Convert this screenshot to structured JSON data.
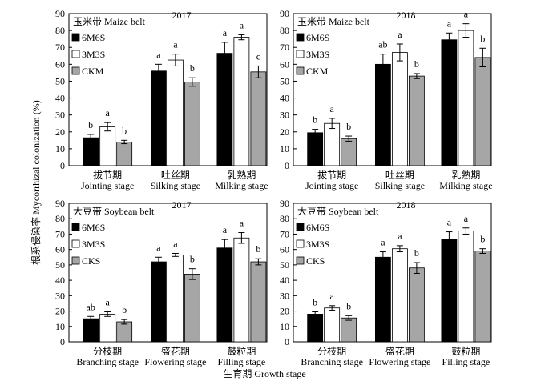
{
  "figure": {
    "ylabel": "根系侵染率 Mycorrhizal colonization (%)",
    "xlabel": "生育期 Growth stage"
  },
  "chart_data": [
    {
      "type": "bar",
      "belt": "玉米带 Maize belt",
      "year": "2017",
      "ylim": [
        0,
        90
      ],
      "yticks": [
        "0",
        "10",
        "20",
        "30",
        "40",
        "50",
        "60",
        "70",
        "80",
        "90"
      ],
      "categories": [
        {
          "cn": "拔节期",
          "en": "Jointing stage"
        },
        {
          "cn": "吐丝期",
          "en": "Silking stage"
        },
        {
          "cn": "乳熟期",
          "en": "Milking stage"
        }
      ],
      "series": [
        {
          "name": "6M6S",
          "color": "#000000",
          "values": [
            16.5,
            56,
            66.5
          ],
          "errors": [
            2,
            4,
            6.5
          ],
          "letters": [
            "b",
            "a",
            "a"
          ]
        },
        {
          "name": "3M3S",
          "color": "#ffffff",
          "values": [
            23,
            62.5,
            76
          ],
          "errors": [
            2.5,
            3.5,
            1.5
          ],
          "letters": [
            "a",
            "a",
            "a"
          ]
        },
        {
          "name": "CKM",
          "color": "#a6a6a6",
          "values": [
            14,
            49.5,
            55.5
          ],
          "errors": [
            1,
            2.5,
            3.5
          ],
          "letters": [
            "b",
            "b",
            "c"
          ]
        }
      ]
    },
    {
      "type": "bar",
      "belt": "玉米带 Maize belt",
      "year": "2018",
      "ylim": [
        0,
        90
      ],
      "yticks": [
        "0",
        "10",
        "20",
        "30",
        "40",
        "50",
        "60",
        "70",
        "80",
        "90"
      ],
      "categories": [
        {
          "cn": "拔节期",
          "en": "Jointing stage"
        },
        {
          "cn": "吐丝期",
          "en": "Silking stage"
        },
        {
          "cn": "乳熟期",
          "en": "Milking stage"
        }
      ],
      "series": [
        {
          "name": "6M6S",
          "color": "#000000",
          "values": [
            19.5,
            60,
            74.5
          ],
          "errors": [
            2,
            6,
            4
          ],
          "letters": [
            "b",
            "ab",
            "a"
          ]
        },
        {
          "name": "3M3S",
          "color": "#ffffff",
          "values": [
            25,
            67,
            80
          ],
          "errors": [
            3,
            5,
            4
          ],
          "letters": [
            "a",
            "a",
            "a"
          ]
        },
        {
          "name": "CKM",
          "color": "#a6a6a6",
          "values": [
            16,
            53,
            64
          ],
          "errors": [
            1.5,
            1.5,
            5.5
          ],
          "letters": [
            "b",
            "b",
            "b"
          ]
        }
      ]
    },
    {
      "type": "bar",
      "belt": "大豆带 Soybean belt",
      "year": "2017",
      "ylim": [
        0,
        90
      ],
      "yticks": [
        "0",
        "10",
        "20",
        "30",
        "40",
        "50",
        "60",
        "70",
        "80",
        "90"
      ],
      "categories": [
        {
          "cn": "分枝期",
          "en": "Branching stage"
        },
        {
          "cn": "盛花期",
          "en": "Flowering stage"
        },
        {
          "cn": "鼓粒期",
          "en": "Filling stage"
        }
      ],
      "series": [
        {
          "name": "6M6S",
          "color": "#000000",
          "values": [
            15,
            52,
            61
          ],
          "errors": [
            1.5,
            3,
            5.5
          ],
          "letters": [
            "ab",
            "a",
            "a"
          ]
        },
        {
          "name": "3M3S",
          "color": "#ffffff",
          "values": [
            18,
            56.5,
            67.5
          ],
          "errors": [
            1.5,
            1,
            3.5
          ],
          "letters": [
            "a",
            "a",
            "a"
          ]
        },
        {
          "name": "CKS",
          "color": "#a6a6a6",
          "values": [
            13,
            44,
            52
          ],
          "errors": [
            1.5,
            3.5,
            2
          ],
          "letters": [
            "b",
            "b",
            "b"
          ]
        }
      ]
    },
    {
      "type": "bar",
      "belt": "大豆带 Soybean belt",
      "year": "2018",
      "ylim": [
        0,
        90
      ],
      "yticks": [
        "0",
        "10",
        "20",
        "30",
        "40",
        "50",
        "60",
        "70",
        "80",
        "90"
      ],
      "categories": [
        {
          "cn": "分枝期",
          "en": "Branching stage"
        },
        {
          "cn": "盛花期",
          "en": "Flowering stage"
        },
        {
          "cn": "鼓粒期",
          "en": "Filling stage"
        }
      ],
      "series": [
        {
          "name": "6M6S",
          "color": "#000000",
          "values": [
            18,
            55,
            66.5
          ],
          "errors": [
            1.5,
            3.5,
            5
          ],
          "letters": [
            "b",
            "a",
            "a"
          ]
        },
        {
          "name": "3M3S",
          "color": "#ffffff",
          "values": [
            22,
            60.5,
            72
          ],
          "errors": [
            1.5,
            2,
            2
          ],
          "letters": [
            "a",
            "a",
            "a"
          ]
        },
        {
          "name": "CKS",
          "color": "#a6a6a6",
          "values": [
            15.5,
            48,
            59
          ],
          "errors": [
            1.5,
            3.5,
            1.5
          ],
          "letters": [
            "b",
            "b",
            "b"
          ]
        }
      ]
    }
  ]
}
